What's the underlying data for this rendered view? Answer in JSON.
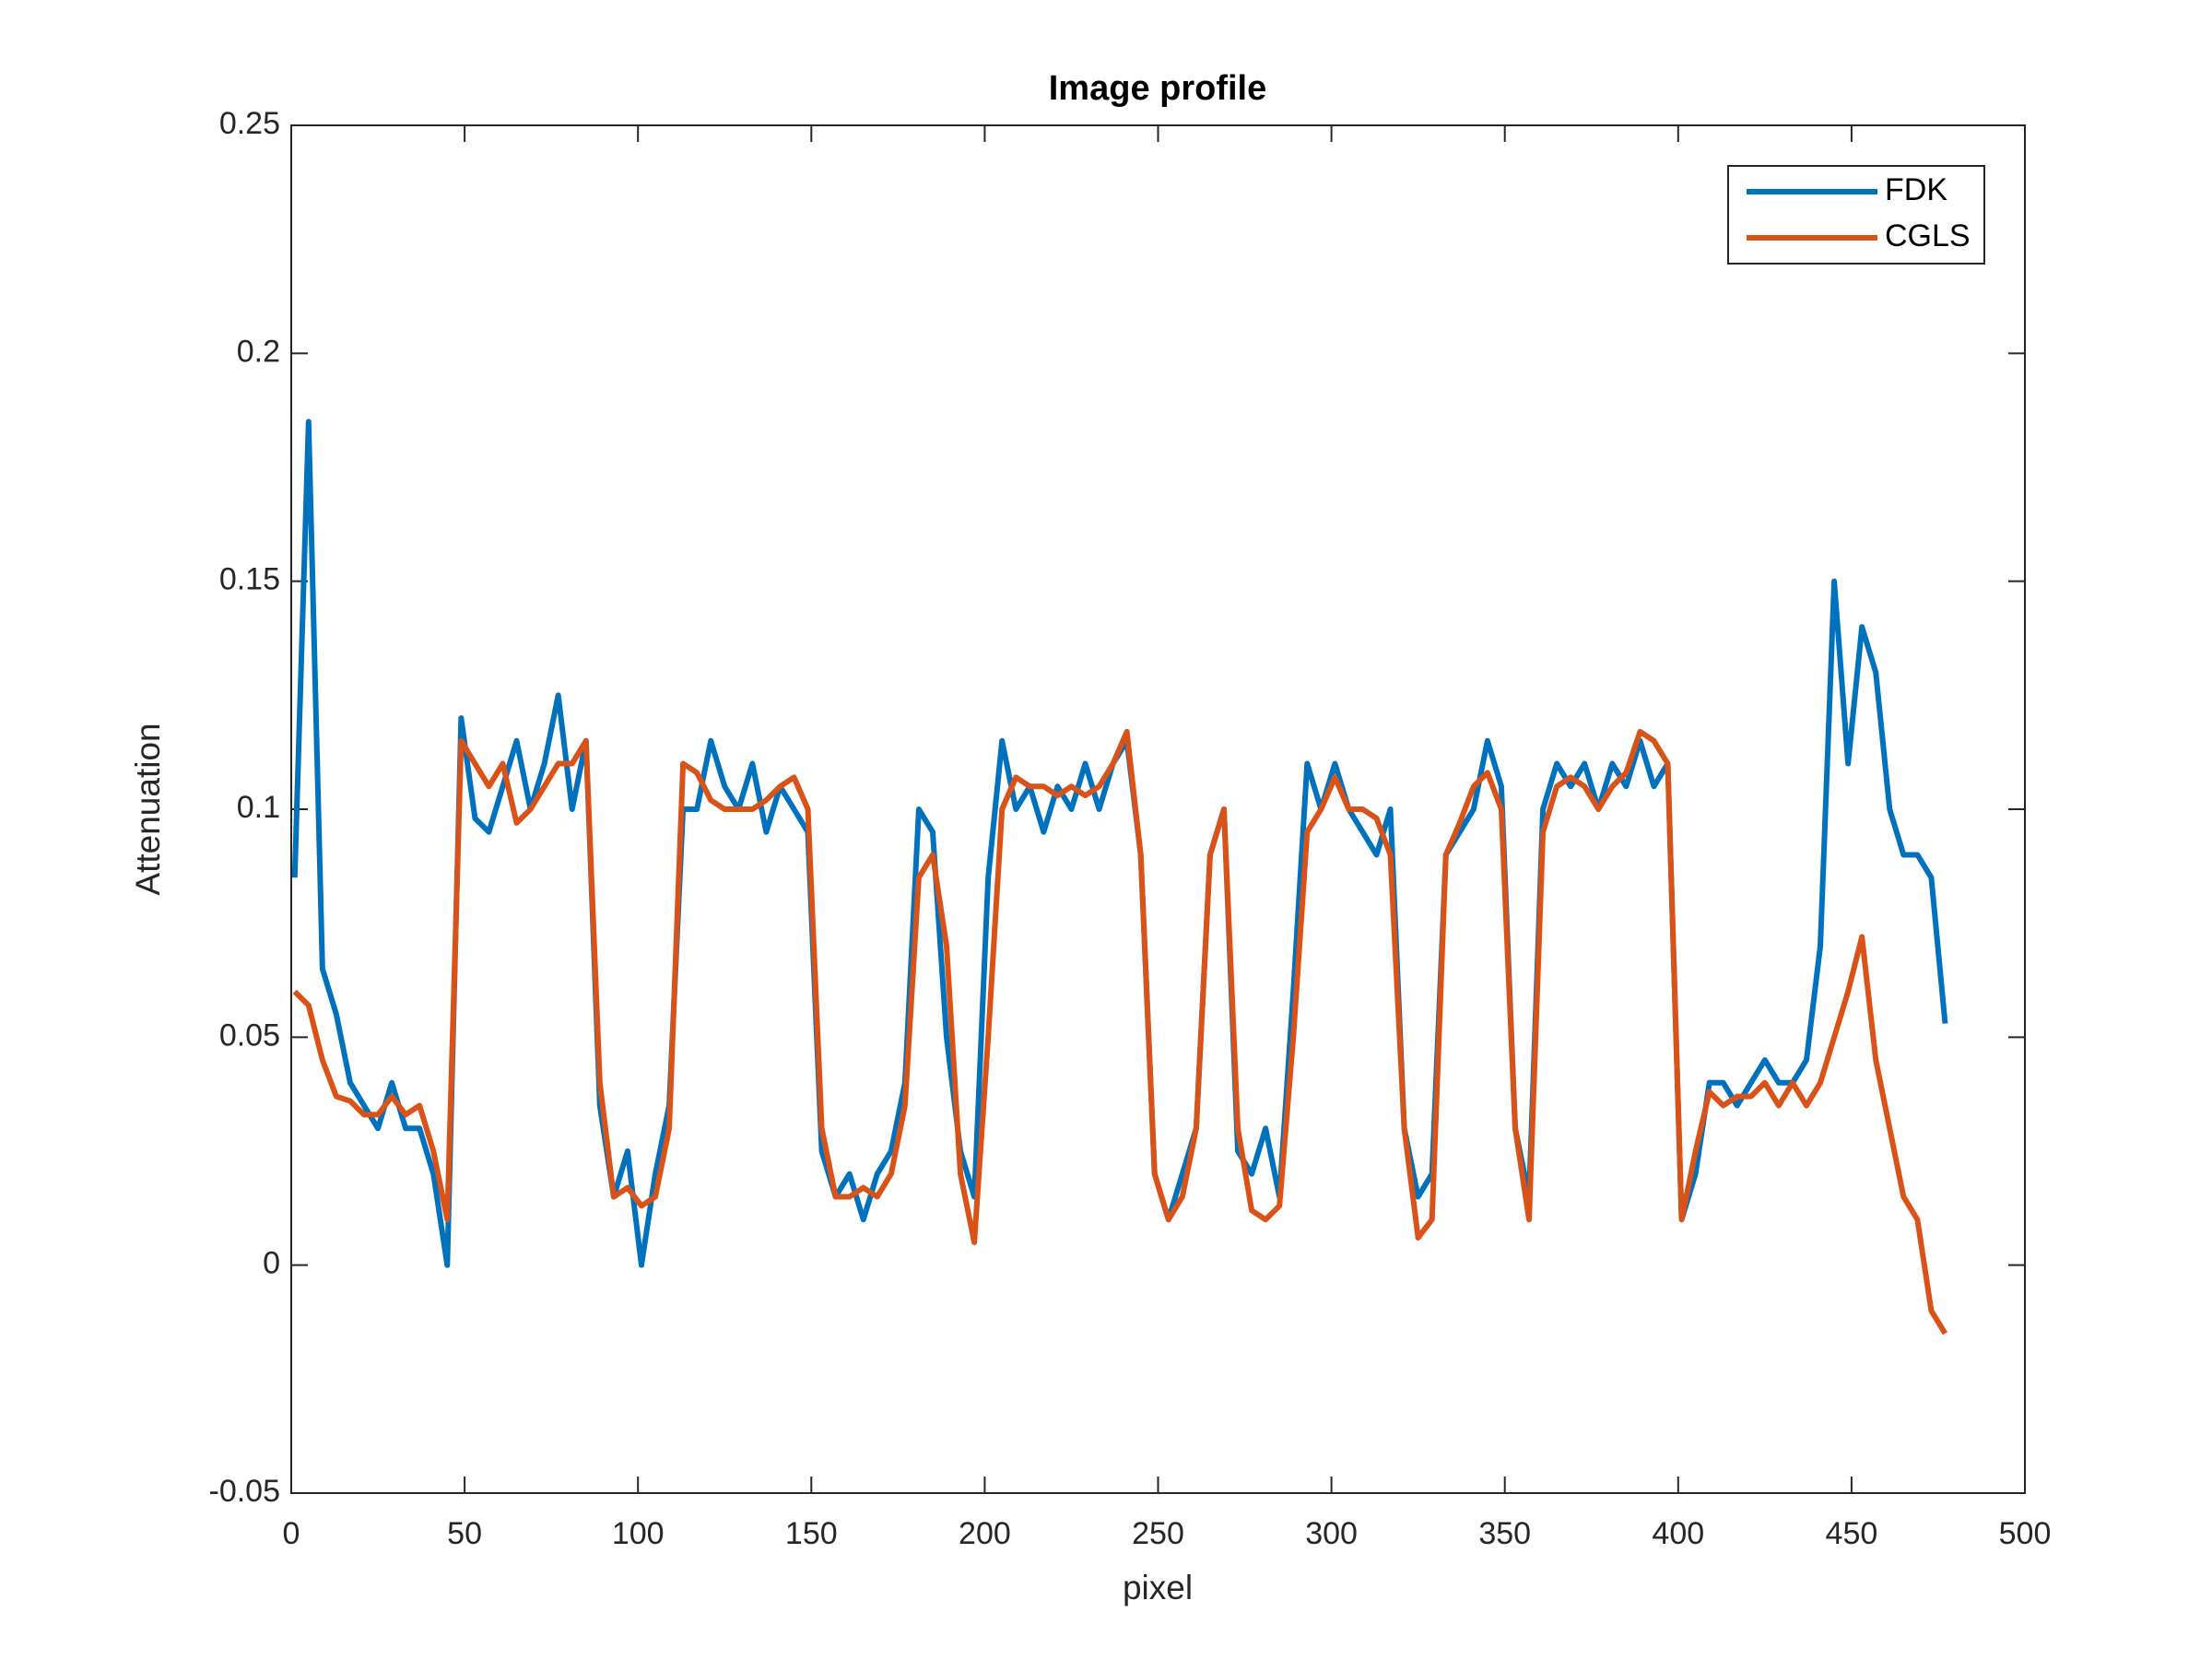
{
  "chart_data": {
    "type": "line",
    "title": "Image profile",
    "xlabel": "pixel",
    "ylabel": "Attenuation",
    "x": [
      1,
      5,
      9,
      13,
      17,
      21,
      25,
      29,
      33,
      37,
      41,
      45,
      49,
      53,
      57,
      61,
      65,
      69,
      73,
      77,
      81,
      85,
      89,
      93,
      97,
      101,
      105,
      109,
      113,
      117,
      121,
      125,
      129,
      133,
      137,
      141,
      145,
      149,
      153,
      157,
      161,
      165,
      169,
      173,
      177,
      181,
      185,
      189,
      193,
      197,
      201,
      205,
      209,
      213,
      217,
      221,
      225,
      229,
      233,
      237,
      241,
      245,
      249,
      253,
      257,
      261,
      265,
      269,
      273,
      277,
      281,
      285,
      289,
      293,
      297,
      301,
      305,
      309,
      313,
      317,
      321,
      325,
      329,
      333,
      337,
      341,
      345,
      349,
      353,
      357,
      361,
      365,
      369,
      373,
      377,
      381,
      385,
      389,
      393,
      397,
      401,
      405,
      409,
      413,
      417,
      421,
      425,
      429,
      433,
      437,
      441,
      445,
      449,
      453,
      457,
      461,
      465,
      469,
      473,
      477
    ],
    "series": [
      {
        "name": "FDK",
        "color": "#0072BD",
        "values": [
          0.085,
          0.185,
          0.065,
          0.055,
          0.04,
          0.035,
          0.03,
          0.04,
          0.03,
          0.03,
          0.02,
          0.0,
          0.12,
          0.098,
          0.095,
          0.105,
          0.115,
          0.1,
          0.11,
          0.125,
          0.1,
          0.115,
          0.035,
          0.015,
          0.025,
          0.0,
          0.02,
          0.035,
          0.1,
          0.1,
          0.115,
          0.105,
          0.1,
          0.11,
          0.095,
          0.105,
          0.1,
          0.095,
          0.025,
          0.015,
          0.02,
          0.01,
          0.02,
          0.025,
          0.04,
          0.1,
          0.095,
          0.05,
          0.025,
          0.015,
          0.085,
          0.115,
          0.1,
          0.105,
          0.095,
          0.105,
          0.1,
          0.11,
          0.1,
          0.11,
          0.115,
          0.09,
          0.02,
          0.01,
          0.02,
          0.03,
          0.09,
          0.1,
          0.025,
          0.02,
          0.03,
          0.015,
          0.06,
          0.11,
          0.1,
          0.11,
          0.1,
          0.095,
          0.09,
          0.1,
          0.03,
          0.015,
          0.02,
          0.09,
          0.095,
          0.1,
          0.115,
          0.105,
          0.03,
          0.015,
          0.1,
          0.11,
          0.105,
          0.11,
          0.1,
          0.11,
          0.105,
          0.115,
          0.105,
          0.11,
          0.01,
          0.02,
          0.04,
          0.04,
          0.035,
          0.04,
          0.045,
          0.04,
          0.04,
          0.045,
          0.07,
          0.15,
          0.11,
          0.14,
          0.13,
          0.1,
          0.09,
          0.09,
          0.085,
          0.053
        ]
      },
      {
        "name": "CGLS",
        "color": "#D95319",
        "values": [
          0.06,
          0.057,
          0.045,
          0.037,
          0.036,
          0.033,
          0.033,
          0.037,
          0.033,
          0.035,
          0.025,
          0.01,
          0.115,
          0.11,
          0.105,
          0.11,
          0.097,
          0.1,
          0.105,
          0.11,
          0.11,
          0.115,
          0.04,
          0.015,
          0.017,
          0.013,
          0.015,
          0.03,
          0.11,
          0.108,
          0.102,
          0.1,
          0.1,
          0.1,
          0.102,
          0.105,
          0.107,
          0.1,
          0.03,
          0.015,
          0.015,
          0.017,
          0.015,
          0.02,
          0.035,
          0.085,
          0.09,
          0.07,
          0.02,
          0.005,
          0.05,
          0.1,
          0.107,
          0.105,
          0.105,
          0.103,
          0.105,
          0.103,
          0.105,
          0.11,
          0.117,
          0.09,
          0.02,
          0.01,
          0.015,
          0.03,
          0.09,
          0.1,
          0.03,
          0.012,
          0.01,
          0.013,
          0.05,
          0.095,
          0.1,
          0.107,
          0.1,
          0.1,
          0.098,
          0.09,
          0.03,
          0.006,
          0.01,
          0.09,
          0.097,
          0.105,
          0.108,
          0.1,
          0.03,
          0.01,
          0.095,
          0.105,
          0.107,
          0.105,
          0.1,
          0.105,
          0.108,
          0.117,
          0.115,
          0.11,
          0.01,
          0.025,
          0.038,
          0.035,
          0.037,
          0.037,
          0.04,
          0.035,
          0.04,
          0.035,
          0.04,
          0.05,
          0.06,
          0.072,
          0.045,
          0.03,
          0.015,
          0.01,
          -0.01,
          -0.015
        ]
      }
    ],
    "xlim": [
      0,
      500
    ],
    "xticks": [
      0,
      50,
      100,
      150,
      200,
      250,
      300,
      350,
      400,
      450,
      500
    ],
    "ylim": [
      -0.05,
      0.25
    ],
    "yticks": [
      -0.05,
      0,
      0.05,
      0.1,
      0.15,
      0.2,
      0.25
    ],
    "legend": "northeast",
    "grid": false
  }
}
